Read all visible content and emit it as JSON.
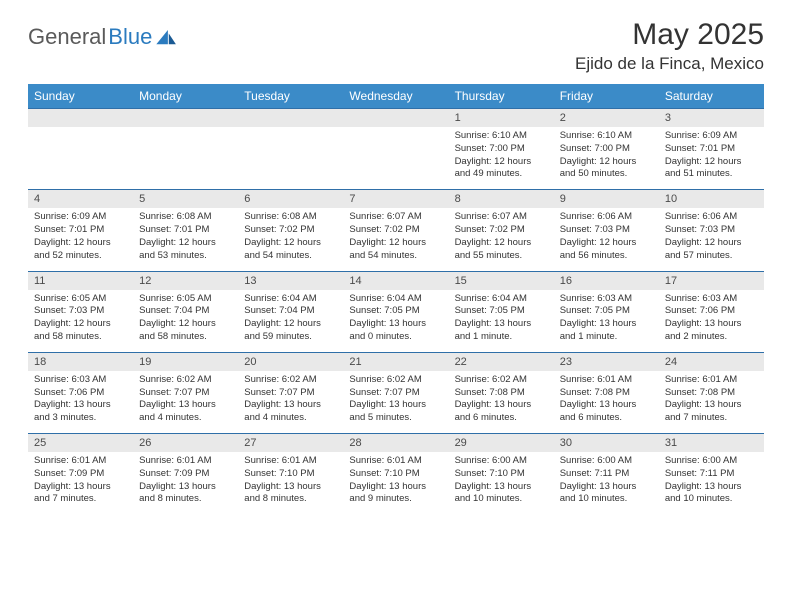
{
  "logo": {
    "part1": "General",
    "part2": "Blue"
  },
  "title": "May 2025",
  "location": "Ejido de la Finca, Mexico",
  "colors": {
    "header_bg": "#3b8bc8",
    "header_text": "#ffffff",
    "daynum_bg": "#e9e9e9",
    "daynum_text": "#4a4a4a",
    "body_text": "#333333",
    "row_border": "#2f6fa8",
    "logo_gray": "#5a5a5a",
    "logo_blue": "#2b7bbf"
  },
  "columns": [
    "Sunday",
    "Monday",
    "Tuesday",
    "Wednesday",
    "Thursday",
    "Friday",
    "Saturday"
  ],
  "weeks": [
    [
      {
        "n": "",
        "lines": []
      },
      {
        "n": "",
        "lines": []
      },
      {
        "n": "",
        "lines": []
      },
      {
        "n": "",
        "lines": []
      },
      {
        "n": "1",
        "lines": [
          "Sunrise: 6:10 AM",
          "Sunset: 7:00 PM",
          "Daylight: 12 hours and 49 minutes."
        ]
      },
      {
        "n": "2",
        "lines": [
          "Sunrise: 6:10 AM",
          "Sunset: 7:00 PM",
          "Daylight: 12 hours and 50 minutes."
        ]
      },
      {
        "n": "3",
        "lines": [
          "Sunrise: 6:09 AM",
          "Sunset: 7:01 PM",
          "Daylight: 12 hours and 51 minutes."
        ]
      }
    ],
    [
      {
        "n": "4",
        "lines": [
          "Sunrise: 6:09 AM",
          "Sunset: 7:01 PM",
          "Daylight: 12 hours and 52 minutes."
        ]
      },
      {
        "n": "5",
        "lines": [
          "Sunrise: 6:08 AM",
          "Sunset: 7:01 PM",
          "Daylight: 12 hours and 53 minutes."
        ]
      },
      {
        "n": "6",
        "lines": [
          "Sunrise: 6:08 AM",
          "Sunset: 7:02 PM",
          "Daylight: 12 hours and 54 minutes."
        ]
      },
      {
        "n": "7",
        "lines": [
          "Sunrise: 6:07 AM",
          "Sunset: 7:02 PM",
          "Daylight: 12 hours and 54 minutes."
        ]
      },
      {
        "n": "8",
        "lines": [
          "Sunrise: 6:07 AM",
          "Sunset: 7:02 PM",
          "Daylight: 12 hours and 55 minutes."
        ]
      },
      {
        "n": "9",
        "lines": [
          "Sunrise: 6:06 AM",
          "Sunset: 7:03 PM",
          "Daylight: 12 hours and 56 minutes."
        ]
      },
      {
        "n": "10",
        "lines": [
          "Sunrise: 6:06 AM",
          "Sunset: 7:03 PM",
          "Daylight: 12 hours and 57 minutes."
        ]
      }
    ],
    [
      {
        "n": "11",
        "lines": [
          "Sunrise: 6:05 AM",
          "Sunset: 7:03 PM",
          "Daylight: 12 hours and 58 minutes."
        ]
      },
      {
        "n": "12",
        "lines": [
          "Sunrise: 6:05 AM",
          "Sunset: 7:04 PM",
          "Daylight: 12 hours and 58 minutes."
        ]
      },
      {
        "n": "13",
        "lines": [
          "Sunrise: 6:04 AM",
          "Sunset: 7:04 PM",
          "Daylight: 12 hours and 59 minutes."
        ]
      },
      {
        "n": "14",
        "lines": [
          "Sunrise: 6:04 AM",
          "Sunset: 7:05 PM",
          "Daylight: 13 hours and 0 minutes."
        ]
      },
      {
        "n": "15",
        "lines": [
          "Sunrise: 6:04 AM",
          "Sunset: 7:05 PM",
          "Daylight: 13 hours and 1 minute."
        ]
      },
      {
        "n": "16",
        "lines": [
          "Sunrise: 6:03 AM",
          "Sunset: 7:05 PM",
          "Daylight: 13 hours and 1 minute."
        ]
      },
      {
        "n": "17",
        "lines": [
          "Sunrise: 6:03 AM",
          "Sunset: 7:06 PM",
          "Daylight: 13 hours and 2 minutes."
        ]
      }
    ],
    [
      {
        "n": "18",
        "lines": [
          "Sunrise: 6:03 AM",
          "Sunset: 7:06 PM",
          "Daylight: 13 hours and 3 minutes."
        ]
      },
      {
        "n": "19",
        "lines": [
          "Sunrise: 6:02 AM",
          "Sunset: 7:07 PM",
          "Daylight: 13 hours and 4 minutes."
        ]
      },
      {
        "n": "20",
        "lines": [
          "Sunrise: 6:02 AM",
          "Sunset: 7:07 PM",
          "Daylight: 13 hours and 4 minutes."
        ]
      },
      {
        "n": "21",
        "lines": [
          "Sunrise: 6:02 AM",
          "Sunset: 7:07 PM",
          "Daylight: 13 hours and 5 minutes."
        ]
      },
      {
        "n": "22",
        "lines": [
          "Sunrise: 6:02 AM",
          "Sunset: 7:08 PM",
          "Daylight: 13 hours and 6 minutes."
        ]
      },
      {
        "n": "23",
        "lines": [
          "Sunrise: 6:01 AM",
          "Sunset: 7:08 PM",
          "Daylight: 13 hours and 6 minutes."
        ]
      },
      {
        "n": "24",
        "lines": [
          "Sunrise: 6:01 AM",
          "Sunset: 7:08 PM",
          "Daylight: 13 hours and 7 minutes."
        ]
      }
    ],
    [
      {
        "n": "25",
        "lines": [
          "Sunrise: 6:01 AM",
          "Sunset: 7:09 PM",
          "Daylight: 13 hours and 7 minutes."
        ]
      },
      {
        "n": "26",
        "lines": [
          "Sunrise: 6:01 AM",
          "Sunset: 7:09 PM",
          "Daylight: 13 hours and 8 minutes."
        ]
      },
      {
        "n": "27",
        "lines": [
          "Sunrise: 6:01 AM",
          "Sunset: 7:10 PM",
          "Daylight: 13 hours and 8 minutes."
        ]
      },
      {
        "n": "28",
        "lines": [
          "Sunrise: 6:01 AM",
          "Sunset: 7:10 PM",
          "Daylight: 13 hours and 9 minutes."
        ]
      },
      {
        "n": "29",
        "lines": [
          "Sunrise: 6:00 AM",
          "Sunset: 7:10 PM",
          "Daylight: 13 hours and 10 minutes."
        ]
      },
      {
        "n": "30",
        "lines": [
          "Sunrise: 6:00 AM",
          "Sunset: 7:11 PM",
          "Daylight: 13 hours and 10 minutes."
        ]
      },
      {
        "n": "31",
        "lines": [
          "Sunrise: 6:00 AM",
          "Sunset: 7:11 PM",
          "Daylight: 13 hours and 10 minutes."
        ]
      }
    ]
  ]
}
